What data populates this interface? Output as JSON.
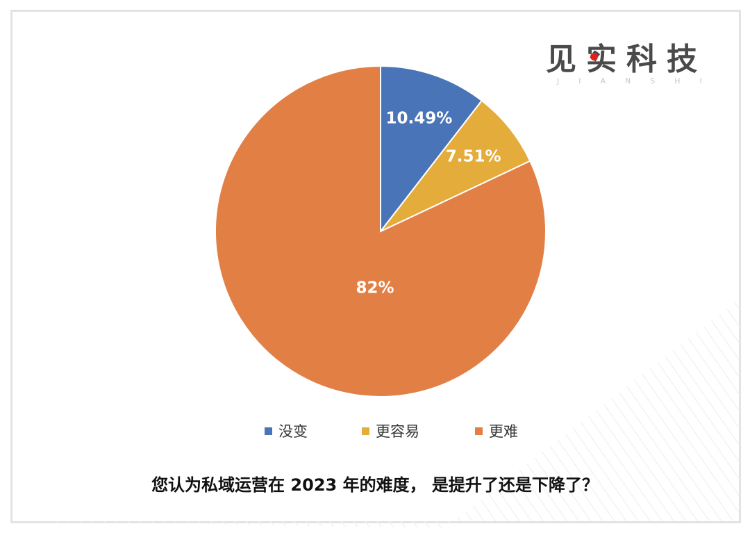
{
  "logo": {
    "cn": "见实科技",
    "en": "JIANSHI"
  },
  "chart_data": {
    "type": "pie",
    "categories": [
      "没变",
      "更容易",
      "更难"
    ],
    "values": [
      10.49,
      7.51,
      82
    ],
    "labels": [
      "10.49%",
      "7.51%",
      "82%"
    ],
    "colors": [
      "#4a74b8",
      "#e4ac3b",
      "#e27f45"
    ],
    "legend_position": "bottom",
    "start_angle": "12 o'clock",
    "direction": "clockwise"
  },
  "legend": {
    "items": [
      {
        "label": "没变",
        "color": "#4a74b8"
      },
      {
        "label": "更容易",
        "color": "#e4ac3b"
      },
      {
        "label": "更难",
        "color": "#e27f45"
      }
    ]
  },
  "caption": "您认为私域运营在 2023 年的难度，  是提升了还是下降了？"
}
